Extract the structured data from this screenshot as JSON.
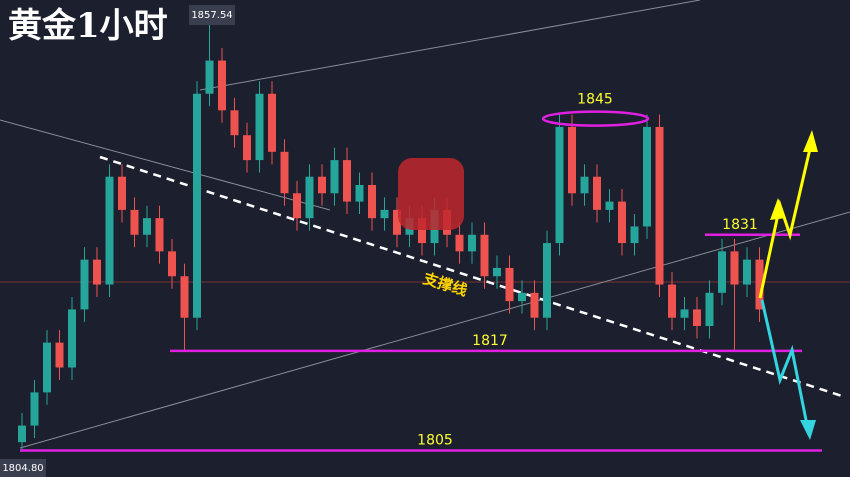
{
  "chart_data": {
    "type": "candlestick",
    "title": "黄金1小时",
    "ylim": [
      1801.8,
      1859.3
    ],
    "high_label": 1857.54,
    "low_label": {
      "value": 1804.8,
      "label": "1804.80"
    },
    "support_label": "支撑线",
    "levels": [
      1845,
      1831,
      1817,
      1805
    ],
    "up_color": "#26a69a",
    "down_color": "#ef5350",
    "open": [
      1806,
      1808,
      1812,
      1818,
      1815,
      1822,
      1828,
      1825,
      1838,
      1834,
      1831,
      1833,
      1829,
      1826,
      1821,
      1848,
      1852,
      1846,
      1843,
      1840,
      1848,
      1841,
      1836,
      1833,
      1838,
      1836,
      1840,
      1835,
      1837,
      1833,
      1834,
      1831,
      1833,
      1830,
      1834,
      1831,
      1829,
      1831,
      1826,
      1827,
      1823,
      1824,
      1821,
      1830,
      1844,
      1836,
      1838,
      1834,
      1835,
      1830,
      1832,
      1844,
      1825,
      1821,
      1822,
      1820,
      1824,
      1829,
      1825,
      1828
    ],
    "close": [
      1808,
      1812,
      1818,
      1815,
      1822,
      1828,
      1825,
      1838,
      1834,
      1831,
      1833,
      1829,
      1826,
      1821,
      1848,
      1852,
      1846,
      1843,
      1840,
      1848,
      1841,
      1836,
      1833,
      1838,
      1836,
      1840,
      1835,
      1837,
      1833,
      1834,
      1831,
      1833,
      1830,
      1834,
      1831,
      1829,
      1831,
      1826,
      1827,
      1823,
      1824,
      1821,
      1830,
      1844,
      1836,
      1838,
      1834,
      1835,
      1830,
      1832,
      1844,
      1825,
      1821,
      1822,
      1820,
      1824,
      1829,
      1825,
      1828,
      1822
    ],
    "high": [
      1809.5,
      1813.5,
      1819.5,
      1819.5,
      1823.5,
      1829.5,
      1829.5,
      1839.5,
      1839.5,
      1835.5,
      1834.5,
      1834.5,
      1830.5,
      1827.5,
      1849.5,
      1857.54,
      1853.5,
      1847.5,
      1844.5,
      1849.5,
      1849.5,
      1842.5,
      1837.5,
      1839.5,
      1839.5,
      1841.5,
      1841.5,
      1838.5,
      1838.5,
      1835.5,
      1835.5,
      1834.5,
      1834.5,
      1835.5,
      1835.5,
      1832.5,
      1832.5,
      1832.5,
      1828.5,
      1828.5,
      1825.5,
      1825.5,
      1831.5,
      1845.5,
      1845.5,
      1839.5,
      1839.5,
      1836.5,
      1836.5,
      1833.5,
      1845.5,
      1845.5,
      1826.5,
      1823.5,
      1823.5,
      1825.5,
      1830.5,
      1830.5,
      1829.5,
      1829.5
    ],
    "low": [
      1804.8,
      1806.5,
      1810.5,
      1813.5,
      1813.5,
      1820.5,
      1823.5,
      1823.5,
      1832.5,
      1829.5,
      1829.5,
      1827.5,
      1824.5,
      1817,
      1819.5,
      1846.5,
      1844.5,
      1841.5,
      1838.5,
      1838.5,
      1839.5,
      1834.5,
      1831.5,
      1831.5,
      1834.5,
      1834.5,
      1833.5,
      1833.5,
      1831.5,
      1831.5,
      1829.5,
      1829.5,
      1828.5,
      1828.5,
      1829.5,
      1827.5,
      1827.5,
      1824.5,
      1824.5,
      1821.5,
      1821.5,
      1819.5,
      1819.5,
      1828.5,
      1834.5,
      1834.5,
      1832.5,
      1832.5,
      1828.5,
      1828.5,
      1830.5,
      1823.5,
      1819.5,
      1819.5,
      1818.5,
      1818.5,
      1822.5,
      1817,
      1823.5,
      1820.5
    ]
  }
}
